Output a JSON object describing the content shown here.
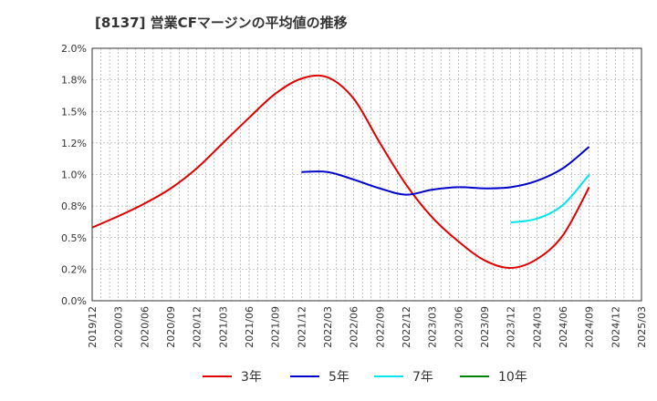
{
  "chart_data": {
    "type": "line",
    "title": "[8137]  営業CFマージンの平均値の推移",
    "xlabel": "",
    "ylabel": "",
    "ylim": [
      0,
      2.0
    ],
    "y_ticks": [
      0,
      0.25,
      0.5,
      0.75,
      1.0,
      1.25,
      1.5,
      1.75,
      2.0
    ],
    "y_tick_labels": [
      "0.0%",
      "0.2%",
      "0.5%",
      "0.8%",
      "1.0%",
      "1.2%",
      "1.5%",
      "1.8%",
      "2.0%"
    ],
    "x_tick_labels": [
      "2019/12",
      "2020/03",
      "2020/06",
      "2020/09",
      "2020/12",
      "2021/03",
      "2021/06",
      "2021/09",
      "2021/12",
      "2022/03",
      "2022/06",
      "2022/09",
      "2022/12",
      "2023/03",
      "2023/06",
      "2023/09",
      "2023/12",
      "2024/03",
      "2024/06",
      "2024/09",
      "2024/12",
      "2025/03"
    ],
    "grid": true,
    "legend_position": "bottom",
    "series": [
      {
        "name": "3年",
        "color": "#e00000",
        "x": [
          "2019/12",
          "2020/03",
          "2020/06",
          "2020/09",
          "2020/12",
          "2021/03",
          "2021/06",
          "2021/09",
          "2021/12",
          "2022/03",
          "2022/06",
          "2022/09",
          "2022/12",
          "2023/03",
          "2023/06",
          "2023/09",
          "2023/12",
          "2024/03",
          "2024/06",
          "2024/09"
        ],
        "values": [
          0.58,
          0.67,
          0.77,
          0.89,
          1.05,
          1.25,
          1.45,
          1.64,
          1.76,
          1.77,
          1.6,
          1.25,
          0.92,
          0.66,
          0.47,
          0.32,
          0.26,
          0.33,
          0.52,
          0.9
        ]
      },
      {
        "name": "5年",
        "color": "#0000cc",
        "x": [
          "2021/12",
          "2022/03",
          "2022/06",
          "2022/09",
          "2022/12",
          "2023/03",
          "2023/06",
          "2023/09",
          "2023/12",
          "2024/03",
          "2024/06",
          "2024/09"
        ],
        "values": [
          1.02,
          1.02,
          0.96,
          0.89,
          0.84,
          0.88,
          0.9,
          0.89,
          0.9,
          0.95,
          1.05,
          1.22
        ]
      },
      {
        "name": "7年",
        "color": "#00e5ee",
        "x": [
          "2023/12",
          "2024/03",
          "2024/06",
          "2024/09"
        ],
        "values": [
          0.62,
          0.65,
          0.76,
          1.0
        ]
      },
      {
        "name": "10年",
        "color": "#008000",
        "x": [],
        "values": []
      }
    ]
  }
}
